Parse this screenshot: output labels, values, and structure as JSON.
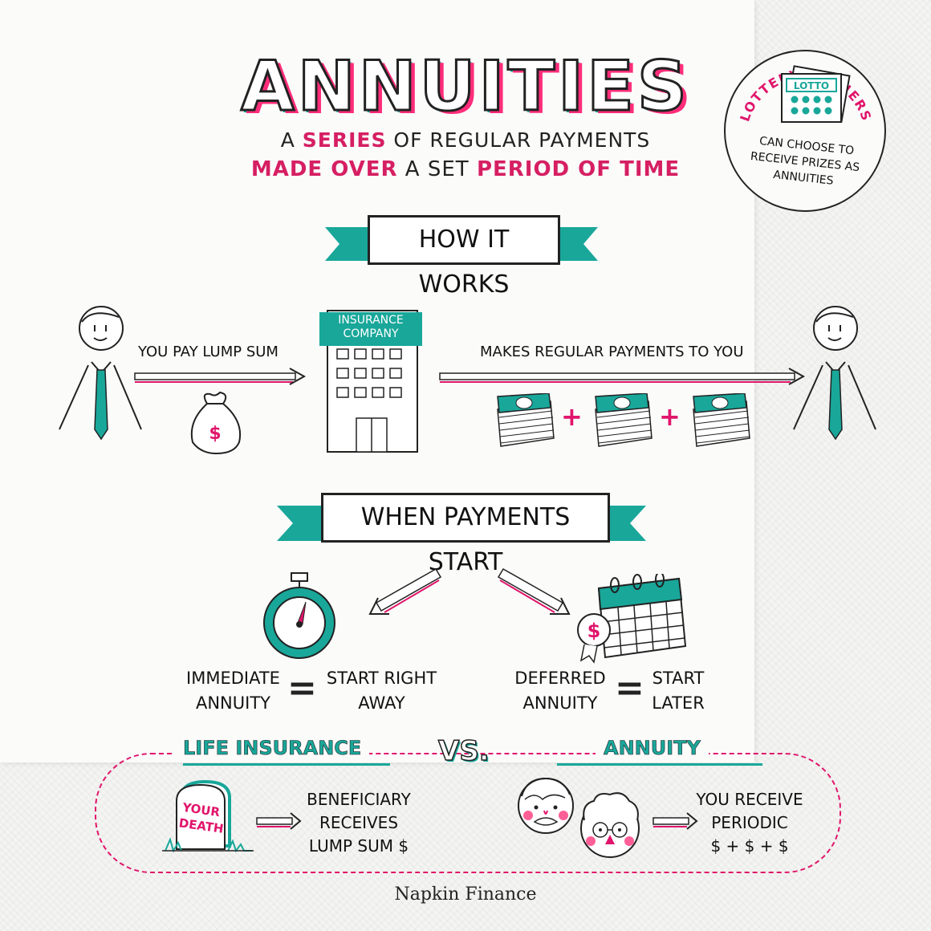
{
  "title": "ANNUITIES",
  "subtitle": {
    "line1_a": "A ",
    "line1_b": "SERIES",
    "line1_c": " OF REGULAR PAYMENTS",
    "line2_a": "MADE OVER",
    "line2_b": " A SET ",
    "line2_c": "PERIOD OF TIME"
  },
  "lottery": {
    "arc": "LOTTERY WINNERS",
    "ticket": "LOTTO",
    "text1": "CAN CHOOSE TO",
    "text2": "RECEIVE PRIZES AS",
    "text3": "ANNUITIES"
  },
  "how": {
    "banner": "HOW IT WORKS",
    "you_pay": "YOU PAY LUMP SUM",
    "insurance1": "INSURANCE",
    "insurance2": "COMPANY",
    "makes": "MAKES REGULAR PAYMENTS TO YOU",
    "dollar": "$",
    "plus": "+"
  },
  "when": {
    "banner": "WHEN PAYMENTS START",
    "imm1": "IMMEDIATE",
    "imm2": "ANNUITY",
    "eq": "=",
    "start1": "START RIGHT",
    "start2": "AWAY",
    "def1": "DEFERRED",
    "def2": "ANNUITY",
    "later1": "START",
    "later2": "LATER"
  },
  "compare": {
    "life": "LIFE INSURANCE",
    "vs": "VS.",
    "annuity": "ANNUITY",
    "grave1": "YOUR",
    "grave2": "DEATH",
    "ben1": "BENEFICIARY",
    "ben2": "RECEIVES",
    "ben3": "LUMP SUM $",
    "rec1": "YOU RECEIVE",
    "rec2": "PERIODIC",
    "rec3": "$ + $ + $"
  },
  "brand": "Napkin Finance",
  "colors": {
    "teal": "#19a79a",
    "pink": "#e0156b",
    "ink": "#222222"
  }
}
